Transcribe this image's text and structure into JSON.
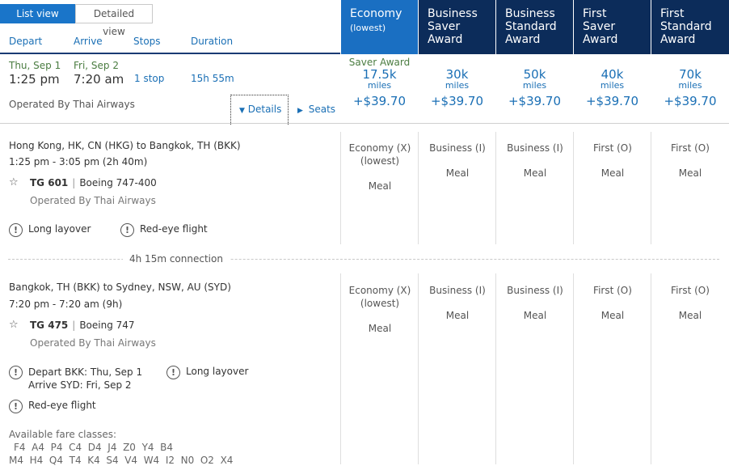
{
  "view_toggle": {
    "list": "List view",
    "detailed": "Detailed view"
  },
  "headers": {
    "depart": "Depart",
    "arrive": "Arrive",
    "stops": "Stops",
    "duration": "Duration"
  },
  "fare_columns": [
    {
      "title": "Economy",
      "sub": "(lowest)",
      "tag": "Saver Award",
      "miles": "17.5k",
      "unit": "miles",
      "fee": "+$39.70"
    },
    {
      "title": "Business Saver Award",
      "sub": "",
      "tag": "",
      "miles": "30k",
      "unit": "miles",
      "fee": "+$39.70"
    },
    {
      "title": "Business Standard Award",
      "sub": "",
      "tag": "",
      "miles": "50k",
      "unit": "miles",
      "fee": "+$39.70"
    },
    {
      "title": "First Saver Award",
      "sub": "",
      "tag": "",
      "miles": "40k",
      "unit": "miles",
      "fee": "+$39.70"
    },
    {
      "title": "First Standard Award",
      "sub": "",
      "tag": "",
      "miles": "70k",
      "unit": "miles",
      "fee": "+$39.70"
    }
  ],
  "summary": {
    "depart_date": "Thu, Sep 1",
    "depart_time": "1:25 pm",
    "arrive_date": "Fri, Sep 2",
    "arrive_time": "7:20 am",
    "stops": "1 stop",
    "duration": "15h 55m",
    "operated_by": "Operated By Thai Airways",
    "details": "Details",
    "seats": "Seats"
  },
  "segments": [
    {
      "route": "Hong Kong, HK, CN (HKG) to Bangkok, TH (BKK)",
      "time": "1:25 pm - 3:05 pm (2h 40m)",
      "flight": "TG 601",
      "aircraft": "Boeing 747-400",
      "operated_by": "Operated By Thai Airways",
      "warnings": [
        "Long layover",
        "Red-eye flight"
      ],
      "cabins": [
        {
          "cabin": "Economy (X)",
          "sub": "(lowest)",
          "meal": "Meal"
        },
        {
          "cabin": "Business (I)",
          "sub": "",
          "meal": "Meal"
        },
        {
          "cabin": "Business (I)",
          "sub": "",
          "meal": "Meal"
        },
        {
          "cabin": "First (O)",
          "sub": "",
          "meal": "Meal"
        },
        {
          "cabin": "First (O)",
          "sub": "",
          "meal": "Meal"
        }
      ]
    },
    {
      "route": "Bangkok, TH (BKK) to Sydney, NSW, AU (SYD)",
      "time": "7:20 pm - 7:20 am (9h)",
      "flight": "TG 475",
      "aircraft": "Boeing 747",
      "operated_by": "Operated By Thai Airways",
      "depart_note": "Depart BKK: Thu, Sep 1",
      "arrive_note": "Arrive SYD: Fri, Sep 2",
      "warnings": [
        "Long layover",
        "Red-eye flight"
      ],
      "cabins": [
        {
          "cabin": "Economy (X)",
          "sub": "(lowest)",
          "meal": "Meal"
        },
        {
          "cabin": "Business (I)",
          "sub": "",
          "meal": "Meal"
        },
        {
          "cabin": "Business (I)",
          "sub": "",
          "meal": "Meal"
        },
        {
          "cabin": "First (O)",
          "sub": "",
          "meal": "Meal"
        },
        {
          "cabin": "First (O)",
          "sub": "",
          "meal": "Meal"
        }
      ]
    }
  ],
  "connection": "4h 15m connection",
  "fare_classes": {
    "label": "Available fare classes:",
    "line1": "F4  A4  P4  C4  D4  J4  Z0  Y4  B4",
    "line2": "M4  H4  Q4  T4  K4  S4  V4  W4  I2  N0  O2  X4"
  },
  "icons": {
    "star": "star-outline-icon",
    "info": "exclamation-circle-icon",
    "caret_down": "caret-down-icon",
    "caret_right": "caret-right-icon"
  },
  "colors": {
    "economy_header": "#1a6fc2",
    "premium_header": "#0c2c5a",
    "link": "#1a6fb5",
    "date_green": "#4b7d42"
  }
}
